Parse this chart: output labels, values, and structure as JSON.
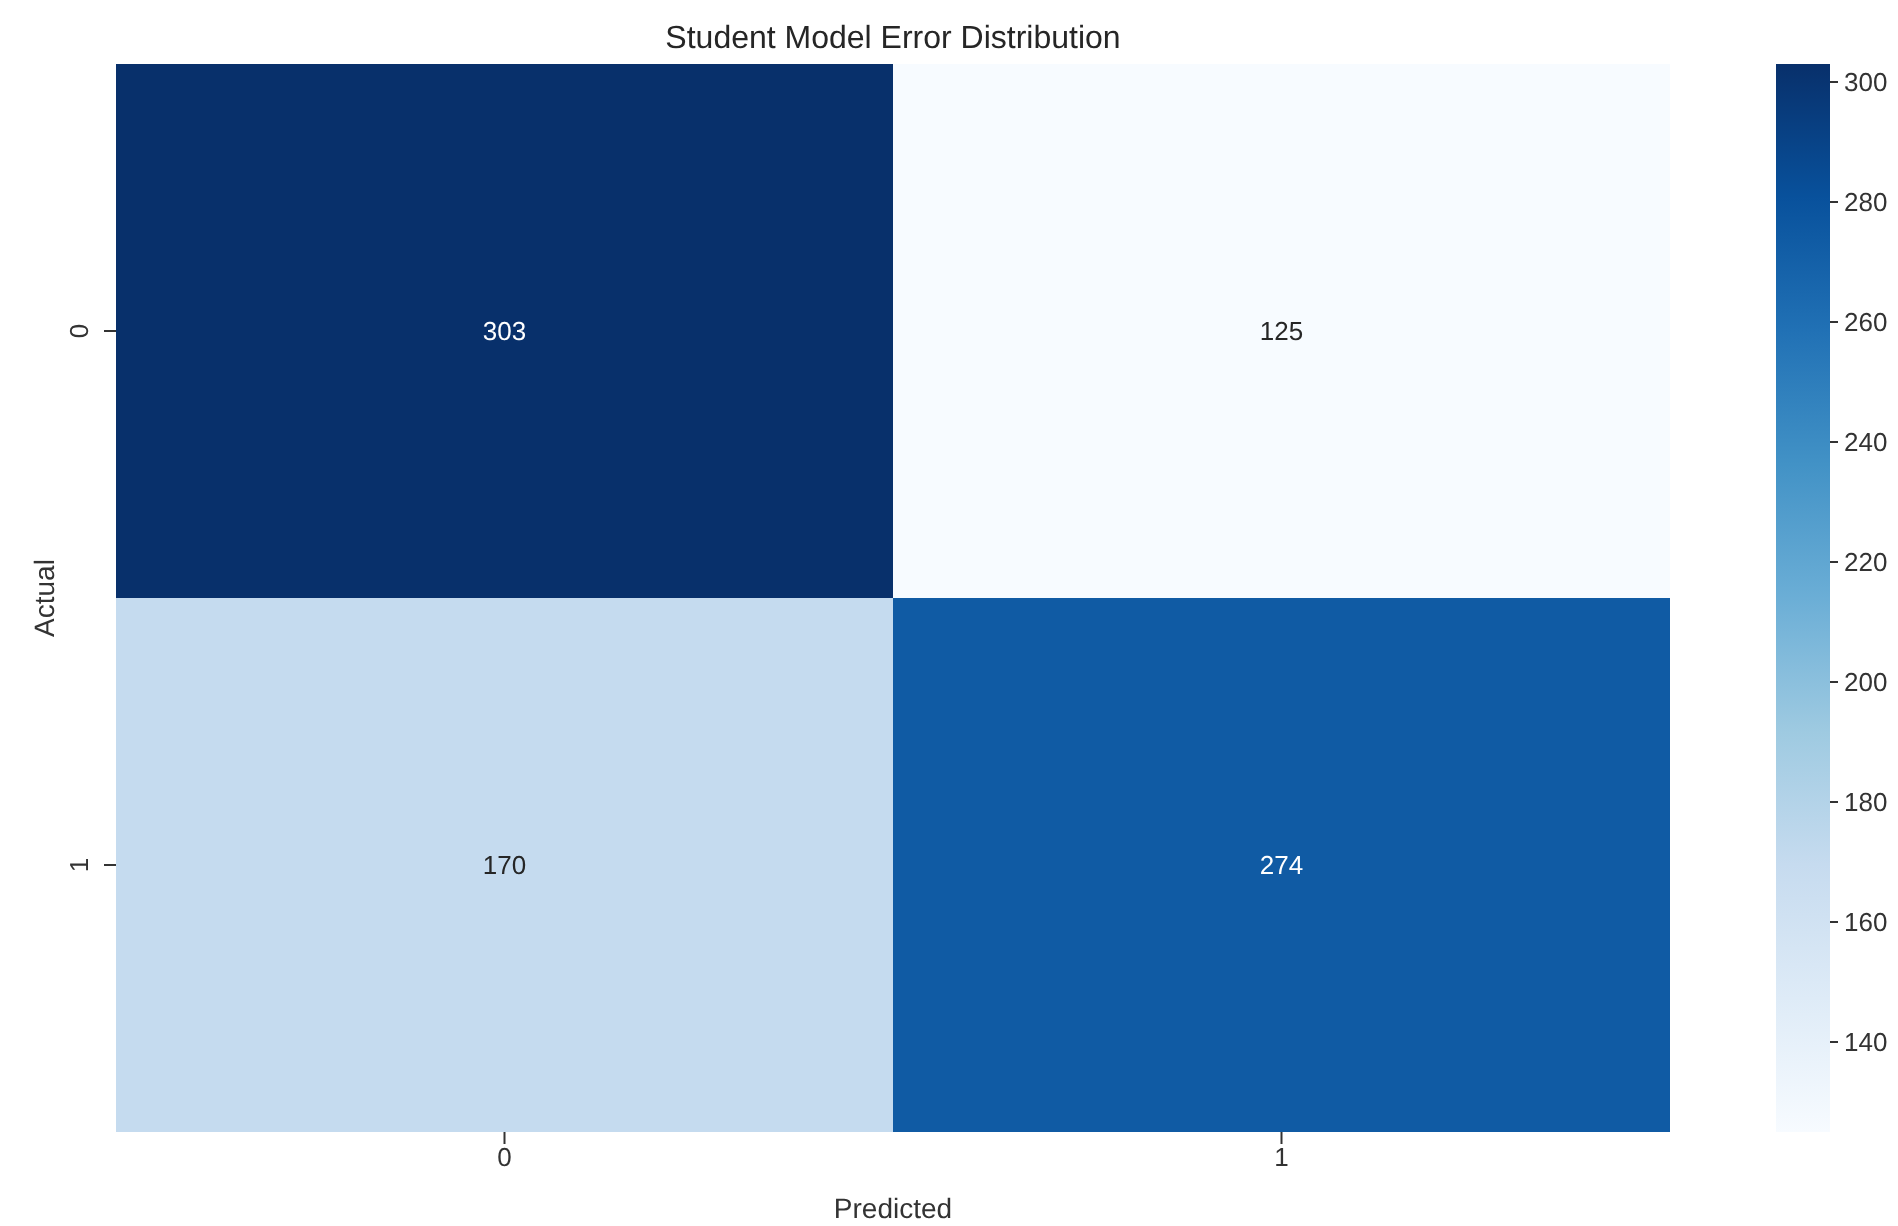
{
  "chart_data": {
    "type": "heatmap",
    "title": "Student Model Error Distribution",
    "xlabel": "Predicted",
    "ylabel": "Actual",
    "categories": [
      "0",
      "1"
    ],
    "y_categories": [
      "0",
      "1"
    ],
    "cells": [
      [
        303,
        125
      ],
      [
        170,
        274
      ]
    ],
    "data_labels": true,
    "clim": [
      125,
      303
    ],
    "cticks": [
      140,
      160,
      180,
      200,
      220,
      240,
      260,
      280,
      300
    ]
  }
}
